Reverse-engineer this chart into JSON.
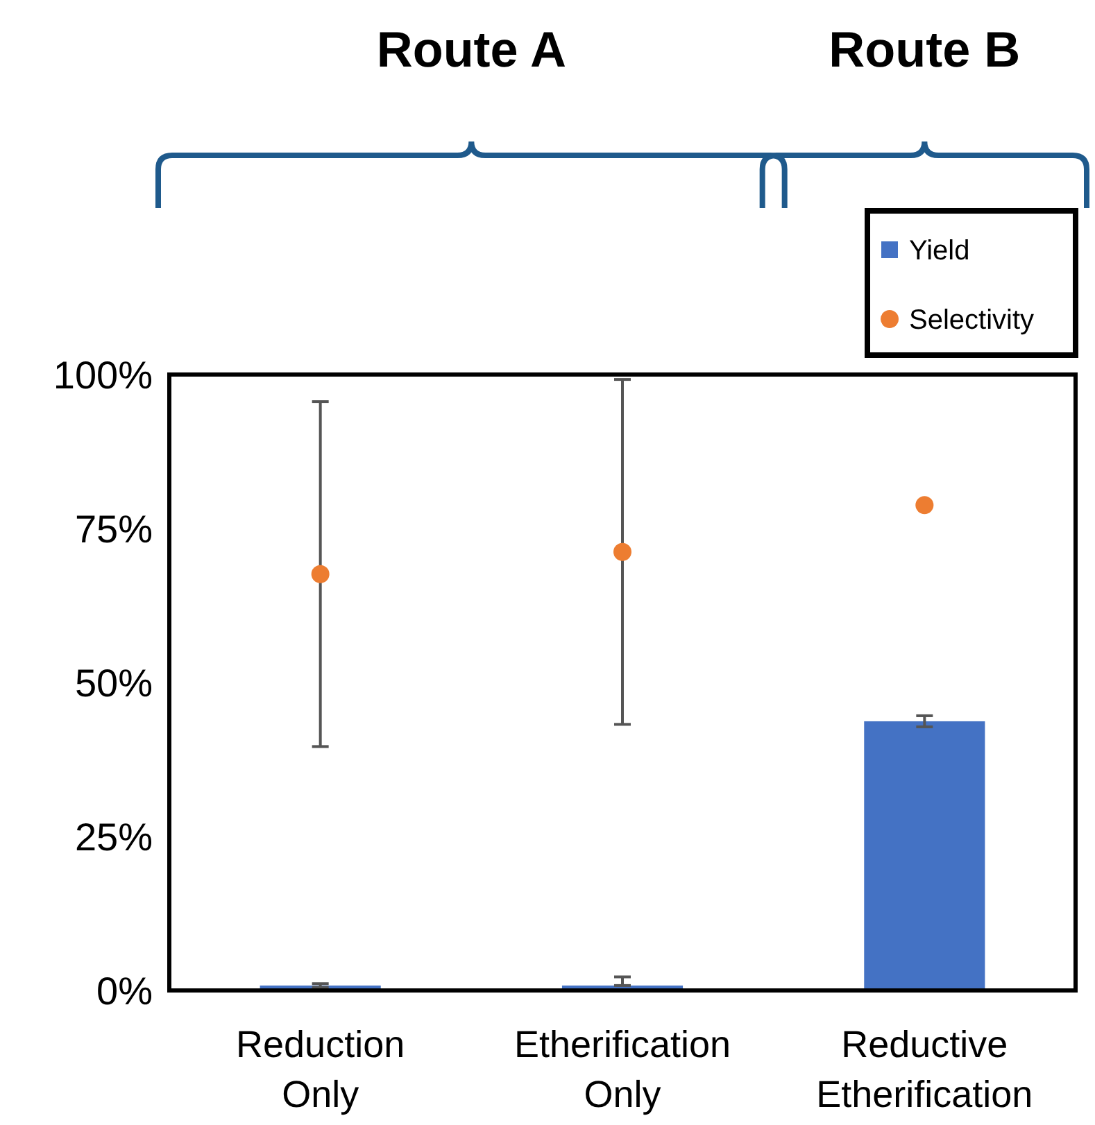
{
  "chart_data": {
    "type": "bar",
    "categories": [
      "Reduction Only",
      "Etherification Only",
      "Reductive Etherification"
    ],
    "series": [
      {
        "name": "Yield",
        "color": "#4472c4",
        "values": [
          0.8,
          0.8,
          43.7
        ],
        "errors": [
          0.3,
          [
            0.8,
            2.2
          ],
          0.9
        ]
      },
      {
        "name": "Selectivity",
        "type": "scatter",
        "color": "#ed7d31",
        "x": [
          "Reduction Only",
          "Etherification Only",
          "Reductive Etherification"
        ],
        "values": [
          67.6,
          71.2,
          78.8
        ],
        "errors": [
          28,
          28,
          null
        ]
      }
    ],
    "ylim": [
      0,
      100
    ],
    "yticks": [
      {
        "value": 0,
        "label": "0%"
      },
      {
        "value": 25,
        "label": "25%"
      },
      {
        "value": 50,
        "label": "50%"
      },
      {
        "value": 75,
        "label": "75%"
      },
      {
        "value": 100,
        "label": "100%"
      }
    ],
    "legend": "top right",
    "grid": false,
    "marker": "circle",
    "annotations": [
      "Route A",
      "Route B"
    ]
  }
}
